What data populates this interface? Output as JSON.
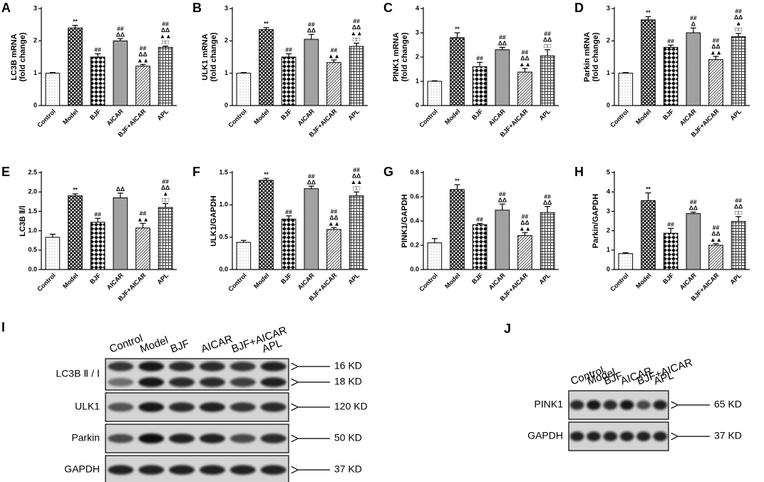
{
  "chart_data": [
    {
      "type": "bar",
      "panel": "A",
      "ylabel": [
        "LC3B mRNA",
        "(fold change)"
      ],
      "categories": [
        "Control",
        "Model",
        "BJF",
        "AICAR",
        "BJF+AICAR",
        "APL"
      ],
      "values": [
        1.0,
        2.4,
        1.5,
        2.0,
        1.22,
        1.8
      ],
      "errors": [
        0.02,
        0.08,
        0.1,
        0.07,
        0.05,
        0.04
      ],
      "annotations": [
        [],
        [
          "**"
        ],
        [
          "##"
        ],
        [
          "##",
          "ΔΔ"
        ],
        [
          "##",
          "ΔΔ",
          "▲▲"
        ],
        [
          "##",
          "ΔΔ",
          "▲▲",
          "□□"
        ]
      ],
      "ylim": [
        0,
        3
      ],
      "yticks": [
        0,
        1,
        2,
        3
      ]
    },
    {
      "type": "bar",
      "panel": "B",
      "ylabel": [
        "ULK1 mRNA",
        "(fold change)"
      ],
      "categories": [
        "Control",
        "Model",
        "BJF",
        "AICAR",
        "BJF+AICAR",
        "APL"
      ],
      "values": [
        1.0,
        2.35,
        1.5,
        2.05,
        1.33,
        1.83
      ],
      "errors": [
        0.02,
        0.06,
        0.1,
        0.15,
        0.08,
        0.1
      ],
      "annotations": [
        [],
        [
          "**"
        ],
        [
          "##"
        ],
        [
          "##",
          "ΔΔ"
        ],
        [
          "##",
          "▲▲"
        ],
        [
          "##",
          "ΔΔ",
          "▲▲",
          "□□"
        ]
      ],
      "ylim": [
        0,
        3
      ],
      "yticks": [
        0,
        1,
        2,
        3
      ]
    },
    {
      "type": "bar",
      "panel": "C",
      "ylabel": [
        "PINK1 mRNA",
        "(fold change)"
      ],
      "categories": [
        "Control",
        "Model",
        "BJF",
        "AICAR",
        "BJF+AICAR",
        "APL"
      ],
      "values": [
        1.0,
        2.8,
        1.6,
        2.3,
        1.38,
        2.05
      ],
      "errors": [
        0.02,
        0.2,
        0.18,
        0.1,
        0.15,
        0.25
      ],
      "annotations": [
        [],
        [
          "**"
        ],
        [
          "##"
        ],
        [
          "##",
          "ΔΔ"
        ],
        [
          "##",
          "ΔΔ",
          "▲▲"
        ],
        [
          "##",
          "ΔΔ",
          "□□"
        ]
      ],
      "ylim": [
        0,
        4
      ],
      "yticks": [
        0,
        1,
        2,
        3,
        4
      ]
    },
    {
      "type": "bar",
      "panel": "D",
      "ylabel": [
        "Parkin mRNA",
        "(fold change)"
      ],
      "categories": [
        "Control",
        "Model",
        "BJF",
        "AICAR",
        "BJF+AICAR",
        "APL"
      ],
      "values": [
        1.0,
        2.65,
        1.8,
        2.25,
        1.42,
        2.13
      ],
      "errors": [
        0.02,
        0.1,
        0.07,
        0.15,
        0.1,
        0.1
      ],
      "annotations": [
        [],
        [
          "**"
        ],
        [
          "##"
        ],
        [
          "##",
          "Δ"
        ],
        [
          "##",
          "ΔΔ",
          "▲▲"
        ],
        [
          "##",
          "ΔΔ",
          "▲",
          "□□"
        ]
      ],
      "ylim": [
        0,
        3
      ],
      "yticks": [
        0,
        1,
        2,
        3
      ]
    },
    {
      "type": "bar",
      "panel": "E",
      "ylabel": [
        "LC3B Ⅱ/Ⅰ"
      ],
      "categories": [
        "Control",
        "Model",
        "BJF",
        "AICAR",
        "BJF+AICAR",
        "APL"
      ],
      "values": [
        0.83,
        1.9,
        1.22,
        1.85,
        1.07,
        1.6
      ],
      "errors": [
        0.08,
        0.05,
        0.1,
        0.12,
        0.12,
        0.1
      ],
      "annotations": [
        [],
        [
          "**"
        ],
        [
          "##"
        ],
        [
          "ΔΔ"
        ],
        [
          "##",
          "▲▲"
        ],
        [
          "##",
          "ΔΔ",
          "▲",
          "□□"
        ]
      ],
      "ylim": [
        0,
        2.5
      ],
      "yticks": [
        {
          "value": 0,
          "label": "0.0"
        },
        0.5,
        {
          "value": 1,
          "label": "1.0"
        },
        1.5,
        {
          "value": 2,
          "label": "2.0"
        },
        2.5
      ]
    },
    {
      "type": "bar",
      "panel": "F",
      "ylabel": [
        "ULK1/GAPDH"
      ],
      "categories": [
        "Control",
        "Model",
        "BJF",
        "AICAR",
        "BJF+AICAR",
        "APL"
      ],
      "values": [
        0.42,
        1.38,
        0.78,
        1.25,
        0.62,
        1.14
      ],
      "errors": [
        0.03,
        0.03,
        0.05,
        0.04,
        0.03,
        0.06
      ],
      "annotations": [
        [],
        [
          "**"
        ],
        [
          "##"
        ],
        [
          "##",
          "ΔΔ"
        ],
        [
          "##",
          "ΔΔ",
          "▲▲"
        ],
        [
          "##",
          "ΔΔ",
          "▲▲",
          "□□"
        ]
      ],
      "ylim": [
        0,
        1.5
      ],
      "yticks": [
        {
          "value": 0,
          "label": "0.0"
        },
        0.5,
        {
          "value": 1,
          "label": "1.0"
        },
        1.5
      ]
    },
    {
      "type": "bar",
      "panel": "G",
      "ylabel": [
        "PINK1/GAPDH"
      ],
      "categories": [
        "Control",
        "Model",
        "BJF",
        "AICAR",
        "BJF+AICAR",
        "APL"
      ],
      "values": [
        0.22,
        0.66,
        0.37,
        0.49,
        0.28,
        0.47
      ],
      "errors": [
        0.035,
        0.04,
        0.01,
        0.05,
        0.025,
        0.05
      ],
      "annotations": [
        [],
        [
          "**"
        ],
        [
          "##"
        ],
        [
          "##",
          "ΔΔ"
        ],
        [
          "##",
          "ΔΔ",
          "▲▲"
        ],
        [
          "##",
          "ΔΔ"
        ]
      ],
      "ylim": [
        0,
        0.8
      ],
      "yticks": [
        {
          "value": 0,
          "label": "0.0"
        },
        0.2,
        0.4,
        0.6,
        0.8
      ]
    },
    {
      "type": "bar",
      "panel": "H",
      "ylabel": [
        "Parkin/GAPDH"
      ],
      "categories": [
        "Control",
        "Model",
        "BJF",
        "AICAR",
        "BJF+AICAR",
        "APL"
      ],
      "values": [
        0.82,
        3.55,
        1.87,
        2.88,
        1.25,
        2.48
      ],
      "errors": [
        0.05,
        0.4,
        0.25,
        0.08,
        0.08,
        0.25
      ],
      "annotations": [
        [],
        [
          "**"
        ],
        [
          "##"
        ],
        [
          "##",
          "ΔΔ"
        ],
        [
          "##",
          "ΔΔ",
          "▲▲"
        ],
        [
          "##",
          "ΔΔ",
          "□□"
        ]
      ],
      "ylim": [
        0,
        5
      ],
      "yticks": [
        0,
        1,
        2,
        3,
        4,
        5
      ]
    }
  ],
  "blots": [
    {
      "panel": "I",
      "lanes": [
        "Control",
        "Model",
        "BJF",
        "AICAR",
        "BJF+AICAR",
        "APL"
      ],
      "rows": [
        {
          "label": "LC3B Ⅱ / Ⅰ",
          "markers": [
            "16 KD",
            "18 KD"
          ]
        },
        {
          "label": "ULK1",
          "markers": [
            "120 KD"
          ]
        },
        {
          "label": "Parkin",
          "markers": [
            "50 KD"
          ]
        },
        {
          "label": "GAPDH",
          "markers": [
            "37 KD"
          ]
        }
      ]
    },
    {
      "panel": "J",
      "lanes": [
        "Control",
        "Model",
        "BJF",
        "AICAR",
        "BJF+AICAR",
        "APL"
      ],
      "rows": [
        {
          "label": "PINK1",
          "markers": [
            "65 KD"
          ]
        },
        {
          "label": "GAPDH",
          "markers": [
            "37 KD"
          ]
        }
      ]
    }
  ]
}
